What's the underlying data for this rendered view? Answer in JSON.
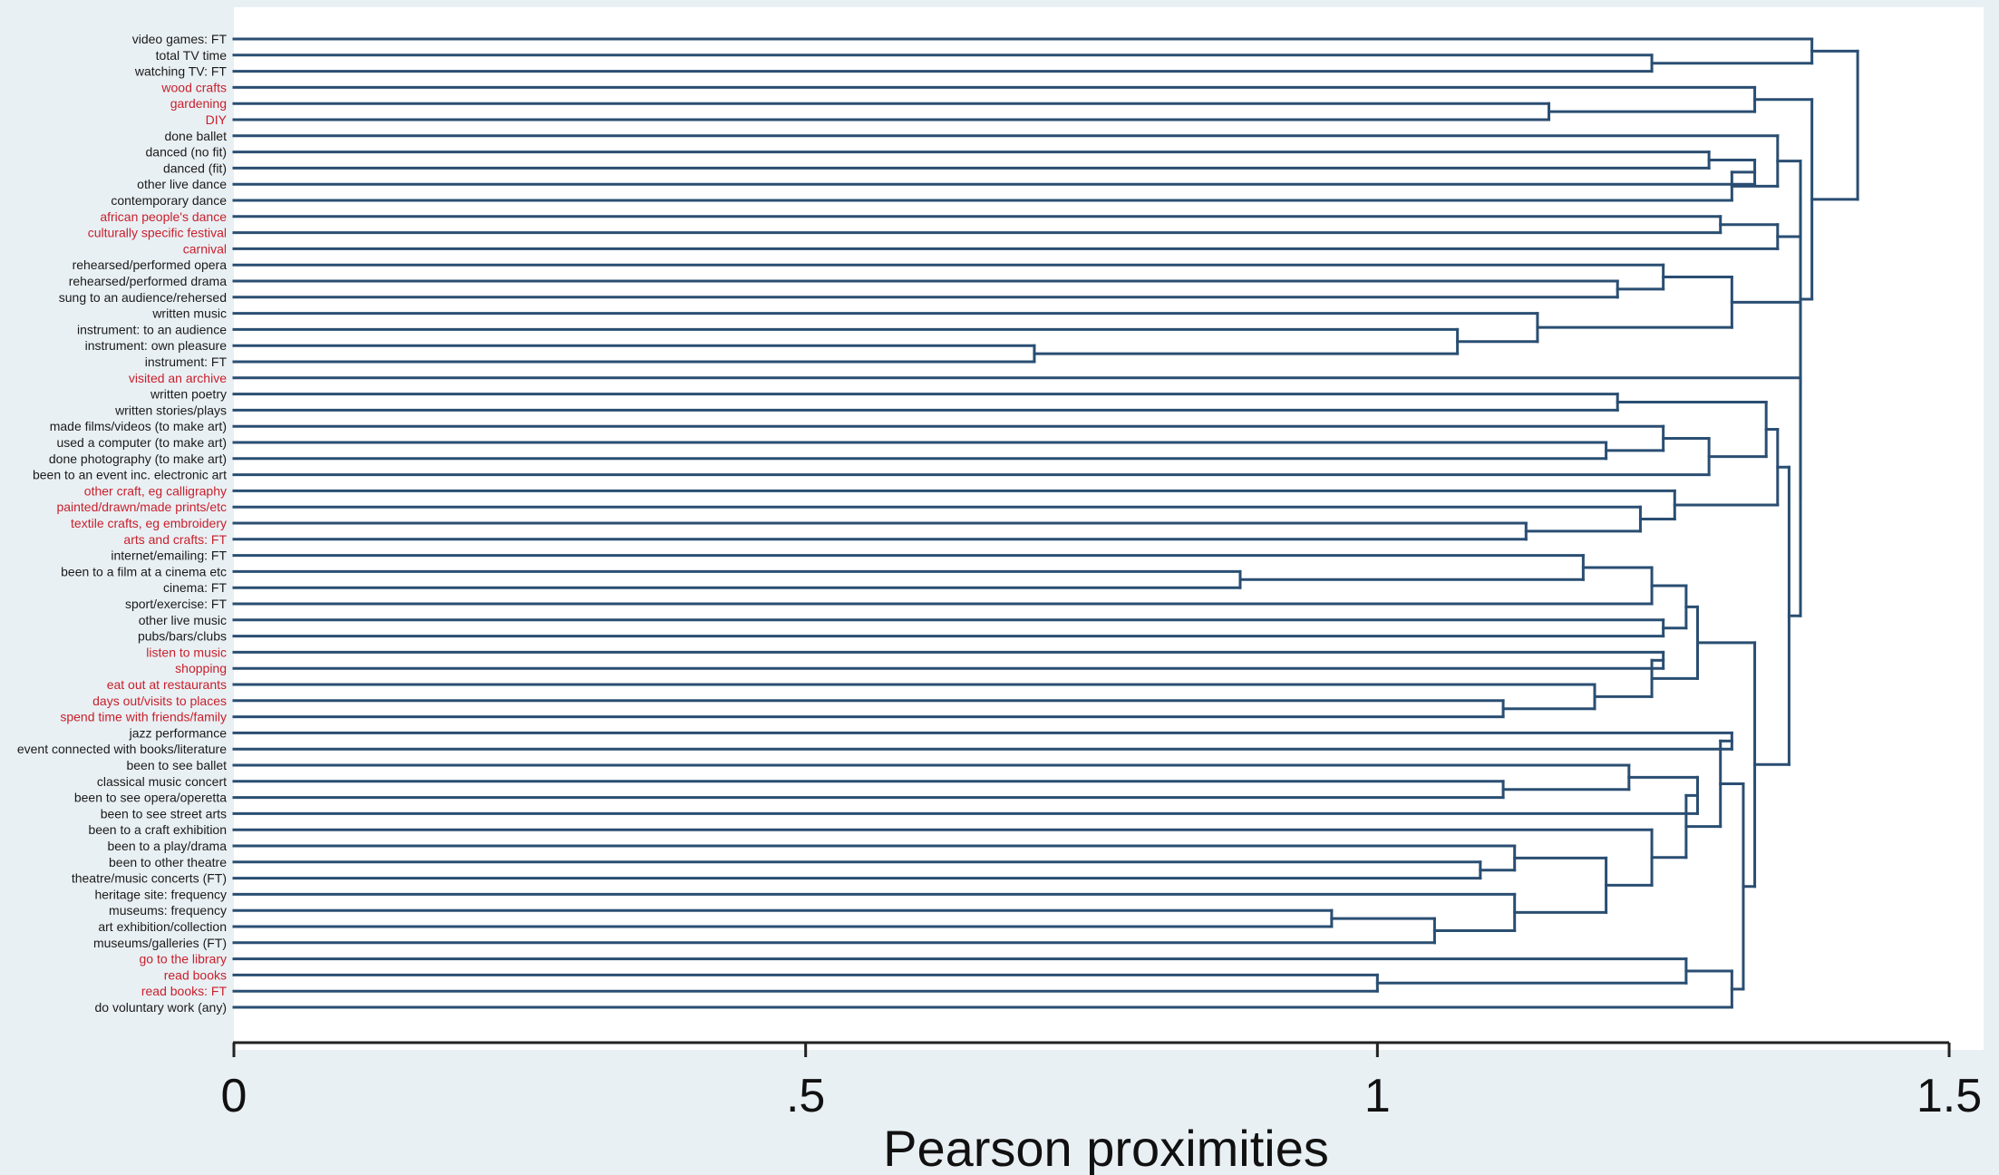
{
  "chart_data": {
    "type": "dendrogram",
    "title": "",
    "xlabel": "Pearson proximities",
    "ylabel": "",
    "xlim": [
      0,
      1.5
    ],
    "xticks": [
      {
        "value": 0,
        "label": "0"
      },
      {
        "value": 0.5,
        "label": ".5"
      },
      {
        "value": 1,
        "label": "1"
      },
      {
        "value": 1.5,
        "label": "1.5"
      }
    ],
    "grid": false,
    "colors": {
      "branch": "#2a4e72",
      "label_default": "#1a1a1a",
      "label_highlight": "#c8202c",
      "plot_background": "#ffffff",
      "outer_background": "#e9f0f4"
    },
    "leaves": [
      {
        "label": "video games: FT",
        "highlight": false
      },
      {
        "label": "total TV time",
        "highlight": false
      },
      {
        "label": "watching TV: FT",
        "highlight": false
      },
      {
        "label": "wood crafts",
        "highlight": true
      },
      {
        "label": "gardening",
        "highlight": true
      },
      {
        "label": "DIY",
        "highlight": true
      },
      {
        "label": "done ballet",
        "highlight": false
      },
      {
        "label": "danced (no fit)",
        "highlight": false
      },
      {
        "label": "danced (fit)",
        "highlight": false
      },
      {
        "label": "other live dance",
        "highlight": false
      },
      {
        "label": "contemporary dance",
        "highlight": false
      },
      {
        "label": "african people's dance",
        "highlight": true
      },
      {
        "label": "culturally specific festival",
        "highlight": true
      },
      {
        "label": "carnival",
        "highlight": true
      },
      {
        "label": "rehearsed/performed opera",
        "highlight": false
      },
      {
        "label": "rehearsed/performed drama",
        "highlight": false
      },
      {
        "label": "sung to an audience/rehersed",
        "highlight": false
      },
      {
        "label": "written music",
        "highlight": false
      },
      {
        "label": "instrument: to an audience",
        "highlight": false
      },
      {
        "label": "instrument: own pleasure",
        "highlight": false
      },
      {
        "label": "instrument: FT",
        "highlight": false
      },
      {
        "label": "visited an archive",
        "highlight": true
      },
      {
        "label": "written poetry",
        "highlight": false
      },
      {
        "label": "written stories/plays",
        "highlight": false
      },
      {
        "label": "made films/videos (to make art)",
        "highlight": false
      },
      {
        "label": "used a computer (to make art)",
        "highlight": false
      },
      {
        "label": "done photography (to make art)",
        "highlight": false
      },
      {
        "label": "been to an event inc. electronic art",
        "highlight": false
      },
      {
        "label": "other craft, eg calligraphy",
        "highlight": true
      },
      {
        "label": "painted/drawn/made prints/etc",
        "highlight": true
      },
      {
        "label": "textile crafts, eg embroidery",
        "highlight": true
      },
      {
        "label": "arts and crafts: FT",
        "highlight": true
      },
      {
        "label": "internet/emailing: FT",
        "highlight": false
      },
      {
        "label": "been to a film at a cinema etc",
        "highlight": false
      },
      {
        "label": "cinema: FT",
        "highlight": false
      },
      {
        "label": "sport/exercise: FT",
        "highlight": false
      },
      {
        "label": "other live music",
        "highlight": false
      },
      {
        "label": "pubs/bars/clubs",
        "highlight": false
      },
      {
        "label": "listen to music",
        "highlight": true
      },
      {
        "label": "shopping",
        "highlight": true
      },
      {
        "label": "eat out at restaurants",
        "highlight": true
      },
      {
        "label": "days out/visits to places",
        "highlight": true
      },
      {
        "label": "spend time with friends/family",
        "highlight": true
      },
      {
        "label": "jazz performance",
        "highlight": false
      },
      {
        "label": "event connected with books/literature",
        "highlight": false
      },
      {
        "label": "been to see ballet",
        "highlight": false
      },
      {
        "label": "classical music concert",
        "highlight": false
      },
      {
        "label": "been to see opera/operetta",
        "highlight": false
      },
      {
        "label": "been to see street arts",
        "highlight": false
      },
      {
        "label": "been to a craft exhibition",
        "highlight": false
      },
      {
        "label": "been to a play/drama",
        "highlight": false
      },
      {
        "label": "been to other theatre",
        "highlight": false
      },
      {
        "label": "theatre/music concerts (FT)",
        "highlight": false
      },
      {
        "label": "heritage site: frequency",
        "highlight": false
      },
      {
        "label": "museums: frequency",
        "highlight": false
      },
      {
        "label": "art exhibition/collection",
        "highlight": false
      },
      {
        "label": "museums/galleries (FT)",
        "highlight": false
      },
      {
        "label": "go to the library",
        "highlight": true
      },
      {
        "label": "read books",
        "highlight": true
      },
      {
        "label": "read books: FT",
        "highlight": true
      },
      {
        "label": "do voluntary work (any)",
        "highlight": false
      }
    ],
    "merges": [
      {
        "id": "m1",
        "a": 1,
        "b": 2,
        "height": 1.24
      },
      {
        "id": "m2",
        "a": 0,
        "b": "m1",
        "height": 1.38
      },
      {
        "id": "m3",
        "a": 4,
        "b": 5,
        "height": 1.15
      },
      {
        "id": "m4",
        "a": 3,
        "b": "m3",
        "height": 1.33
      },
      {
        "id": "m5",
        "a": 7,
        "b": 8,
        "height": 1.29
      },
      {
        "id": "m6",
        "a": "m5",
        "b": 9,
        "height": 1.33
      },
      {
        "id": "m7",
        "a": "m6",
        "b": 10,
        "height": 1.31
      },
      {
        "id": "m8",
        "a": 6,
        "b": "m7",
        "height": 1.35
      },
      {
        "id": "m9",
        "a": 11,
        "b": 12,
        "height": 1.3
      },
      {
        "id": "m10",
        "a": "m9",
        "b": 13,
        "height": 1.35
      },
      {
        "id": "m11",
        "a": "m8",
        "b": "m10",
        "height": 1.37
      },
      {
        "id": "m12",
        "a": 15,
        "b": 16,
        "height": 1.21
      },
      {
        "id": "m13",
        "a": 14,
        "b": "m12",
        "height": 1.25
      },
      {
        "id": "m14",
        "a": 19,
        "b": 20,
        "height": 0.7
      },
      {
        "id": "m15",
        "a": 18,
        "b": "m14",
        "height": 1.07
      },
      {
        "id": "m16",
        "a": 17,
        "b": "m15",
        "height": 1.14
      },
      {
        "id": "m17",
        "a": "m13",
        "b": "m16",
        "height": 1.31
      },
      {
        "id": "m18",
        "a": 22,
        "b": 23,
        "height": 1.21
      },
      {
        "id": "m19",
        "a": 25,
        "b": 26,
        "height": 1.2
      },
      {
        "id": "m20",
        "a": 24,
        "b": "m19",
        "height": 1.25
      },
      {
        "id": "m21",
        "a": "m20",
        "b": 27,
        "height": 1.29
      },
      {
        "id": "m22",
        "a": "m18",
        "b": "m21",
        "height": 1.34
      },
      {
        "id": "m23",
        "a": 30,
        "b": 31,
        "height": 1.13
      },
      {
        "id": "m24",
        "a": 29,
        "b": "m23",
        "height": 1.23
      },
      {
        "id": "m25",
        "a": 28,
        "b": "m24",
        "height": 1.26
      },
      {
        "id": "m26",
        "a": "m22",
        "b": "m25",
        "height": 1.35
      },
      {
        "id": "m27",
        "a": 33,
        "b": 34,
        "height": 0.88
      },
      {
        "id": "m28",
        "a": 32,
        "b": "m27",
        "height": 1.18
      },
      {
        "id": "m29",
        "a": "m28",
        "b": 35,
        "height": 1.24
      },
      {
        "id": "m30",
        "a": 36,
        "b": 37,
        "height": 1.25
      },
      {
        "id": "m31",
        "a": "m29",
        "b": "m30",
        "height": 1.27
      },
      {
        "id": "m32",
        "a": 38,
        "b": 39,
        "height": 1.25
      },
      {
        "id": "m33",
        "a": 41,
        "b": 42,
        "height": 1.11
      },
      {
        "id": "m34",
        "a": 40,
        "b": "m33",
        "height": 1.19
      },
      {
        "id": "m35",
        "a": "m32",
        "b": "m34",
        "height": 1.24
      },
      {
        "id": "m36",
        "a": "m31",
        "b": "m35",
        "height": 1.28
      },
      {
        "id": "m37",
        "a": 43,
        "b": 44,
        "height": 1.31
      },
      {
        "id": "m38",
        "a": 46,
        "b": 47,
        "height": 1.11
      },
      {
        "id": "m39",
        "a": 45,
        "b": "m38",
        "height": 1.22
      },
      {
        "id": "m40",
        "a": "m39",
        "b": 48,
        "height": 1.28
      },
      {
        "id": "m41",
        "a": 51,
        "b": 52,
        "height": 1.09
      },
      {
        "id": "m42",
        "a": 50,
        "b": "m41",
        "height": 1.12
      },
      {
        "id": "m43",
        "a": 54,
        "b": 55,
        "height": 0.96
      },
      {
        "id": "m44",
        "a": "m43",
        "b": 56,
        "height": 1.05
      },
      {
        "id": "m45",
        "a": 53,
        "b": "m44",
        "height": 1.12
      },
      {
        "id": "m46",
        "a": "m42",
        "b": "m45",
        "height": 1.2
      },
      {
        "id": "m47",
        "a": 49,
        "b": "m46",
        "height": 1.24
      },
      {
        "id": "m48",
        "a": "m40",
        "b": "m47",
        "height": 1.27
      },
      {
        "id": "m49",
        "a": "m37",
        "b": "m48",
        "height": 1.3
      },
      {
        "id": "m50",
        "a": 58,
        "b": 59,
        "height": 1.0
      },
      {
        "id": "m51",
        "a": 57,
        "b": "m50",
        "height": 1.27
      },
      {
        "id": "m52",
        "a": "m51",
        "b": 60,
        "height": 1.31
      },
      {
        "id": "m53",
        "a": "m49",
        "b": "m52",
        "height": 1.32
      },
      {
        "id": "m54",
        "a": "m36",
        "b": "m53",
        "height": 1.33
      },
      {
        "id": "m55",
        "a": "m26",
        "b": "m54",
        "height": 1.36
      },
      {
        "id": "m56",
        "a": 21,
        "b": "m55",
        "height": 1.37
      },
      {
        "id": "m57",
        "a": "m17",
        "b": "m56",
        "height": 1.37
      },
      {
        "id": "m58",
        "a": "m11",
        "b": "m57",
        "height": 1.37
      },
      {
        "id": "m59",
        "a": "m4",
        "b": "m58",
        "height": 1.38
      },
      {
        "id": "m60",
        "a": "m2",
        "b": "m59",
        "height": 1.42
      }
    ]
  }
}
